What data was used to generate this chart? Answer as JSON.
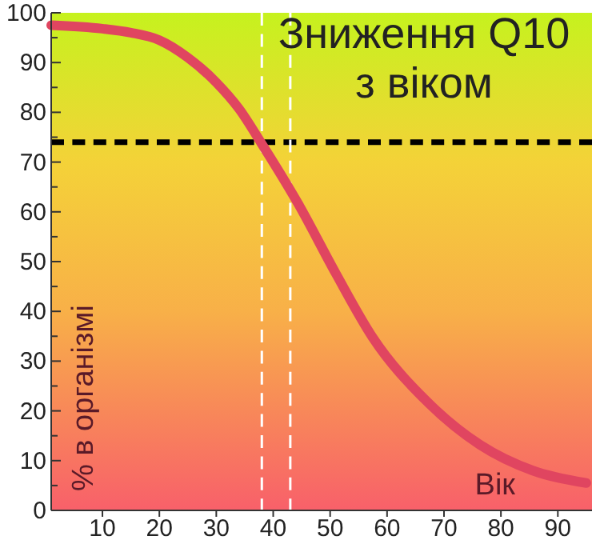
{
  "chart_data": {
    "type": "line",
    "title": "Зниження Q10\nз віком",
    "xlabel": "Вік",
    "ylabel": "% в організмі",
    "x": [
      1,
      10,
      15,
      20,
      25,
      30,
      34,
      37.8,
      44.5,
      51,
      57.5,
      67,
      76.3,
      85.6,
      95
    ],
    "series": [
      {
        "color": "#e04560",
        "values": [
          97.5,
          96.8,
          96,
          94.5,
          91,
          86,
          80.7,
          74,
          61.4,
          47.6,
          34.7,
          21.9,
          13.2,
          8,
          5.5
        ]
      }
    ],
    "xlim": [
      1,
      96
    ],
    "ylim": [
      0,
      100
    ],
    "xticks": [
      10,
      20,
      30,
      40,
      50,
      60,
      70,
      80,
      90
    ],
    "yticks": [
      0,
      {
        "value": 5,
        "label": null
      },
      10,
      {
        "value": 15,
        "label": null
      },
      20,
      {
        "value": 25,
        "label": null
      },
      30,
      {
        "value": 35,
        "label": null
      },
      40,
      {
        "value": 45,
        "label": null
      },
      50,
      {
        "value": 55,
        "label": null
      },
      60,
      {
        "value": 65,
        "label": null
      },
      70,
      {
        "value": 75,
        "label": null
      },
      80,
      {
        "value": 85,
        "label": null
      },
      90,
      {
        "value": 95,
        "label": null
      },
      100
    ],
    "ref_lines": [
      {
        "axis": "y",
        "value": 74,
        "color": "#000000",
        "line_style": "dashed"
      },
      {
        "axis": "x",
        "value": 38,
        "color": "#ffffff",
        "line_style": "dashed"
      },
      {
        "axis": "x",
        "value": 43,
        "color": "#ffffff",
        "line_style": "dashed"
      }
    ],
    "grid": false,
    "marker": "none",
    "line_style": "solid"
  }
}
